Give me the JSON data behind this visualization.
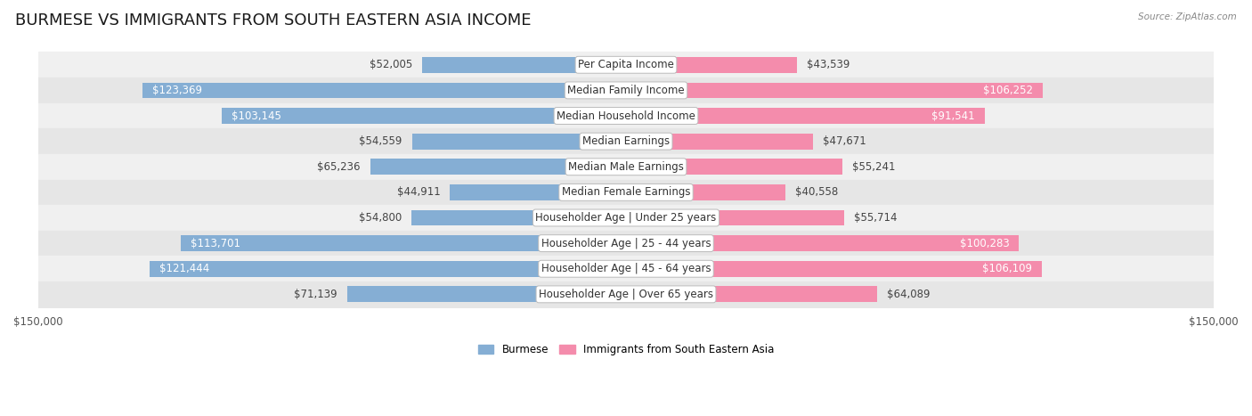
{
  "title": "BURMESE VS IMMIGRANTS FROM SOUTH EASTERN ASIA INCOME",
  "source": "Source: ZipAtlas.com",
  "categories": [
    "Per Capita Income",
    "Median Family Income",
    "Median Household Income",
    "Median Earnings",
    "Median Male Earnings",
    "Median Female Earnings",
    "Householder Age | Under 25 years",
    "Householder Age | 25 - 44 years",
    "Householder Age | 45 - 64 years",
    "Householder Age | Over 65 years"
  ],
  "burmese_values": [
    52005,
    123369,
    103145,
    54559,
    65236,
    44911,
    54800,
    113701,
    121444,
    71139
  ],
  "immigrant_values": [
    43539,
    106252,
    91541,
    47671,
    55241,
    40558,
    55714,
    100283,
    106109,
    64089
  ],
  "burmese_color": "#85aed4",
  "immigrant_color": "#f48cac",
  "row_bg_colors": [
    "#f0f0f0",
    "#e6e6e6"
  ],
  "max_value": 150000,
  "label_fontsize": 8.5,
  "title_fontsize": 13,
  "background_color": "#ffffff",
  "inside_label_threshold": 85000,
  "immigrant_inside_threshold": 75000
}
